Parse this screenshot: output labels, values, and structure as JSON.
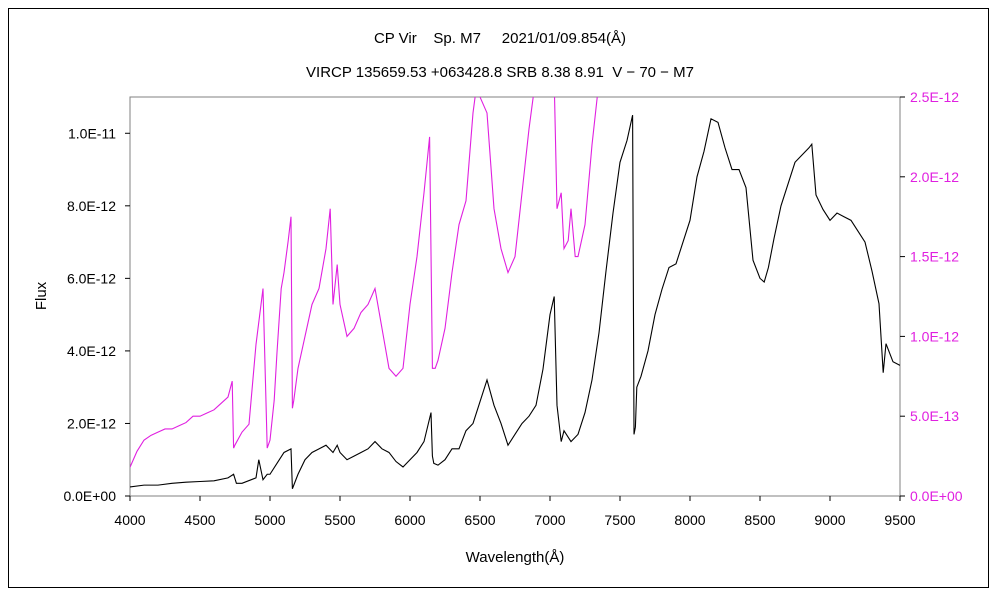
{
  "chart_data": {
    "type": "line",
    "title": "CP Vir    Sp. M7     2021/01/09.854(Å)",
    "subtitle": "VIRCP 135659.53 +063428.8 SRB 8.38 8.91  V − 70 − M7",
    "xlabel": "Wavelength(Å)",
    "ylabel": "Flux",
    "xlim": [
      4000,
      9500
    ],
    "ylim_left": [
      0,
      1.1e-11
    ],
    "ylim_right": [
      0,
      2.5e-12
    ],
    "x_ticks": [
      "4000",
      "4500",
      "5000",
      "5500",
      "6000",
      "6500",
      "7000",
      "7500",
      "8000",
      "8500",
      "9000",
      "9500"
    ],
    "y_ticks_left": [
      "0.0E+00",
      "2.0E-12",
      "4.0E-12",
      "6.0E-12",
      "8.0E-12",
      "1.0E-11"
    ],
    "y_ticks_right": [
      "0.0E+00",
      "5.0E-13",
      "1.0E-12",
      "1.5E-12",
      "2.0E-12",
      "2.5E-12"
    ],
    "grid": false,
    "colors": {
      "primary": "#000000",
      "secondary": "#e020e0"
    },
    "series": [
      {
        "axis": "left",
        "color": "#000000",
        "x": [
          4000,
          4100,
          4200,
          4300,
          4400,
          4500,
          4600,
          4700,
          4740,
          4760,
          4800,
          4900,
          4920,
          4950,
          4980,
          5000,
          5050,
          5100,
          5150,
          5160,
          5170,
          5200,
          5250,
          5300,
          5350,
          5400,
          5450,
          5480,
          5500,
          5550,
          5600,
          5650,
          5700,
          5750,
          5800,
          5850,
          5900,
          5950,
          6000,
          6050,
          6100,
          6150,
          6160,
          6170,
          6200,
          6250,
          6300,
          6350,
          6400,
          6450,
          6500,
          6550,
          6600,
          6650,
          6700,
          6750,
          6800,
          6850,
          6900,
          6950,
          7000,
          7030,
          7050,
          7080,
          7100,
          7150,
          7200,
          7250,
          7300,
          7350,
          7400,
          7450,
          7500,
          7550,
          7590,
          7600,
          7610,
          7620,
          7650,
          7700,
          7750,
          7800,
          7850,
          7900,
          7950,
          8000,
          8050,
          8100,
          8150,
          8200,
          8250,
          8300,
          8350,
          8400,
          8450,
          8500,
          8530,
          8560,
          8600,
          8650,
          8700,
          8750,
          8800,
          8850,
          8870,
          8900,
          8950,
          9000,
          9050,
          9100,
          9150,
          9200,
          9250,
          9300,
          9350,
          9380,
          9400,
          9420,
          9450,
          9500
        ],
        "y": [
          2.5e-13,
          3e-13,
          3e-13,
          3.5e-13,
          3.8e-13,
          4e-13,
          4.2e-13,
          5e-13,
          6e-13,
          3.5e-13,
          3.5e-13,
          5e-13,
          1e-12,
          4.5e-13,
          6e-13,
          6e-13,
          9e-13,
          1.2e-12,
          1.3e-12,
          2e-13,
          3e-13,
          6e-13,
          1e-12,
          1.2e-12,
          1.3e-12,
          1.4e-12,
          1.2e-12,
          1.4e-12,
          1.2e-12,
          1e-12,
          1.1e-12,
          1.2e-12,
          1.3e-12,
          1.5e-12,
          1.3e-12,
          1.2e-12,
          9.5e-13,
          8e-13,
          1e-12,
          1.2e-12,
          1.5e-12,
          2.3e-12,
          1.1e-12,
          9e-13,
          8.5e-13,
          1e-12,
          1.3e-12,
          1.3e-12,
          1.8e-12,
          2e-12,
          2.6e-12,
          3.2e-12,
          2.5e-12,
          2e-12,
          1.4e-12,
          1.7e-12,
          2e-12,
          2.2e-12,
          2.5e-12,
          3.5e-12,
          5e-12,
          5.5e-12,
          2.5e-12,
          1.5e-12,
          1.8e-12,
          1.5e-12,
          1.7e-12,
          2.3e-12,
          3.2e-12,
          4.5e-12,
          6.2e-12,
          7.8e-12,
          9.2e-12,
          9.8e-12,
          1.05e-11,
          1.7e-12,
          1.9e-12,
          3e-12,
          3.3e-12,
          4e-12,
          5e-12,
          5.7e-12,
          6.3e-12,
          6.4e-12,
          7e-12,
          7.6e-12,
          8.8e-12,
          9.5e-12,
          1.04e-11,
          1.03e-11,
          9.6e-12,
          9e-12,
          9e-12,
          8.5e-12,
          6.5e-12,
          6e-12,
          5.9e-12,
          6.3e-12,
          7.1e-12,
          8e-12,
          8.6e-12,
          9.2e-12,
          9.4e-12,
          9.6e-12,
          9.7e-12,
          8.3e-12,
          7.9e-12,
          7.6e-12,
          7.8e-12,
          7.7e-12,
          7.6e-12,
          7.3e-12,
          7e-12,
          6.2e-12,
          5.3e-12,
          3.4e-12,
          4.2e-12,
          4e-12,
          3.7e-12,
          3.6e-12
        ]
      },
      {
        "axis": "right",
        "color": "#e020e0",
        "x": [
          4000,
          4050,
          4100,
          4150,
          4200,
          4250,
          4300,
          4350,
          4400,
          4450,
          4500,
          4550,
          4600,
          4650,
          4700,
          4730,
          4740,
          4750,
          4800,
          4850,
          4900,
          4950,
          4980,
          5000,
          5030,
          5050,
          5080,
          5100,
          5130,
          5150,
          5160,
          5170,
          5200,
          5250,
          5300,
          5350,
          5400,
          5430,
          5450,
          5480,
          5500,
          5550,
          5600,
          5650,
          5700,
          5750,
          5800,
          5850,
          5900,
          5950,
          6000,
          6050,
          6100,
          6140,
          6160,
          6180,
          6200,
          6250,
          6300,
          6350,
          6400,
          6450,
          6480,
          6500,
          6550,
          6600,
          6650,
          6700,
          6750,
          6800,
          6850,
          6880,
          6900,
          6950,
          7000,
          7030,
          7050,
          7080,
          7100,
          7130,
          7150,
          7180,
          7200,
          7250,
          7300,
          7350,
          7400,
          7450,
          7500,
          7550,
          7590,
          7600,
          7610,
          7620
        ],
        "y": [
          1.8e-13,
          2.8e-13,
          3.5e-13,
          3.8e-13,
          4e-13,
          4.2e-13,
          4.2e-13,
          4.4e-13,
          4.6e-13,
          5e-13,
          5e-13,
          5.2e-13,
          5.4e-13,
          5.8e-13,
          6.2e-13,
          7.2e-13,
          3e-13,
          3.2e-13,
          4e-13,
          4.5e-13,
          9.5e-13,
          1.3e-12,
          3e-13,
          3.5e-13,
          6e-13,
          9e-13,
          1.3e-12,
          1.4e-12,
          1.6e-12,
          1.75e-12,
          5.5e-13,
          6e-13,
          8e-13,
          1e-12,
          1.2e-12,
          1.3e-12,
          1.55e-12,
          1.8e-12,
          1.2e-12,
          1.45e-12,
          1.2e-12,
          1e-12,
          1.05e-12,
          1.15e-12,
          1.2e-12,
          1.3e-12,
          1.05e-12,
          8e-13,
          7.5e-13,
          8e-13,
          1.2e-12,
          1.5e-12,
          1.9e-12,
          2.25e-12,
          8e-13,
          8e-13,
          8.5e-13,
          1.05e-12,
          1.4e-12,
          1.7e-12,
          1.85e-12,
          2.4e-12,
          2.6e-12,
          2.5e-12,
          2.4e-12,
          1.8e-12,
          1.55e-12,
          1.4e-12,
          1.5e-12,
          1.9e-12,
          2.3e-12,
          2.5e-12,
          2.6e-12,
          2.6e-12,
          2.6e-12,
          2.6e-12,
          1.8e-12,
          1.9e-12,
          1.55e-12,
          1.6e-12,
          1.8e-12,
          1.5e-12,
          1.5e-12,
          1.7e-12,
          2.2e-12,
          2.6e-12,
          2.6e-12,
          2.6e-12,
          2.6e-12,
          2.6e-12,
          2.6e-12,
          2.6e-12,
          2.6e-12,
          2.6e-12
        ]
      }
    ]
  }
}
